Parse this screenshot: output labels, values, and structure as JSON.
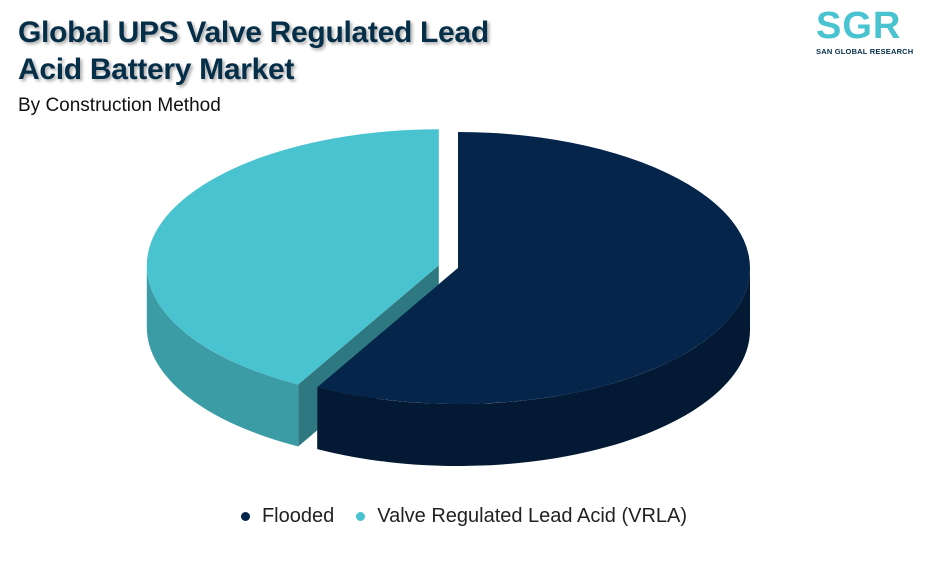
{
  "title_line1": "Global UPS Valve Regulated Lead",
  "title_line2": "Acid Battery Market",
  "subtitle": "By Construction Method",
  "logo": {
    "mark": "SGR",
    "tagline": "SAN GLOBAL RESEARCH"
  },
  "colors": {
    "flooded": "#05254a",
    "vrla": "#4ac3d0",
    "title": "#052e49"
  },
  "chart_data": {
    "type": "pie",
    "title": "Global UPS Valve Regulated Lead Acid Battery Market",
    "subtitle": "By Construction Method",
    "legend_position": "bottom",
    "categories": [
      "Flooded",
      "Valve Regulated Lead Acid (VRLA)"
    ],
    "values": [
      58,
      42
    ],
    "unit": "%",
    "exploded": [
      "Valve Regulated Lead Acid (VRLA)"
    ],
    "three_d": true
  }
}
